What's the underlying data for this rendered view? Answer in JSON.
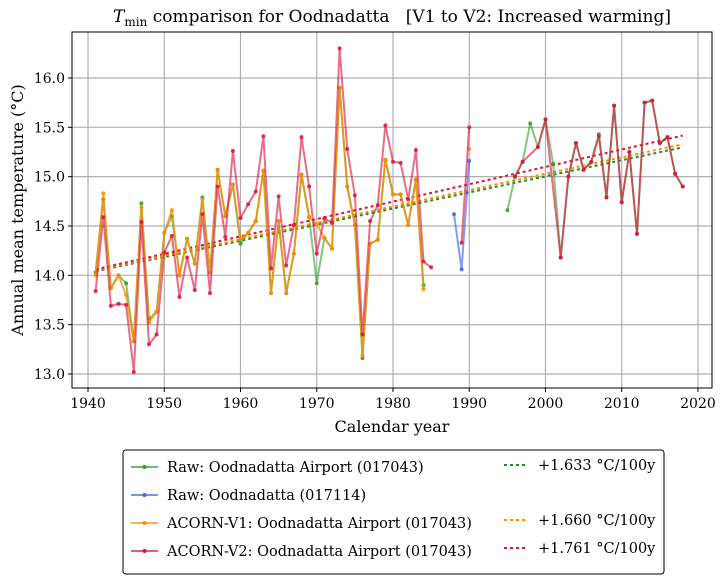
{
  "chart_data": {
    "type": "line",
    "title_main": "T",
    "title_sub": "min",
    "title_rest": " comparison for Oodnadatta   [V1 to V2: Increased warming]",
    "xlabel": "Calendar year",
    "ylabel": "Annual mean temperature (°C)",
    "xlim": [
      1937.9,
      2021.84
    ],
    "ylim": [
      12.858,
      16.466
    ],
    "xticks": [
      1940,
      1950,
      1960,
      1970,
      1980,
      1990,
      2000,
      2010,
      2020
    ],
    "yticks": [
      "13.0",
      "13.5",
      "14.0",
      "14.5",
      "15.0",
      "15.5",
      "16.0"
    ],
    "grid": true,
    "legend_position": "below-center",
    "series": [
      {
        "name": "Raw: Oodnadatta Airport (017043)",
        "color": "#2ca02c",
        "segments": [
          [
            [
              1941,
              14.03
            ],
            [
              1942,
              14.77
            ],
            [
              1943,
              13.87
            ],
            [
              1944,
              14.0
            ],
            [
              1945,
              13.92
            ],
            [
              1946,
              13.33
            ],
            [
              1947,
              14.73
            ],
            [
              1948,
              13.56
            ],
            [
              1949,
              13.63
            ],
            [
              1950,
              14.43
            ],
            [
              1951,
              14.6
            ],
            [
              1952,
              14.0
            ],
            [
              1953,
              14.37
            ],
            [
              1954,
              14.12
            ],
            [
              1955,
              14.79
            ],
            [
              1956,
              14.03
            ],
            [
              1957,
              15.07
            ],
            [
              1958,
              14.6
            ],
            [
              1959,
              14.92
            ],
            [
              1960,
              14.32
            ],
            [
              1961,
              14.43
            ],
            [
              1962,
              14.55
            ],
            [
              1963,
              15.06
            ],
            [
              1964,
              13.82
            ],
            [
              1965,
              14.55
            ],
            [
              1966,
              13.82
            ],
            [
              1967,
              14.22
            ],
            [
              1968,
              15.02
            ],
            [
              1969,
              14.59
            ],
            [
              1970,
              13.92
            ],
            [
              1971,
              14.38
            ],
            [
              1972,
              14.27
            ],
            [
              1973,
              15.9
            ],
            [
              1974,
              14.9
            ],
            [
              1975,
              14.51
            ],
            [
              1976,
              13.16
            ],
            [
              1977,
              14.32
            ],
            [
              1978,
              14.36
            ],
            [
              1979,
              15.17
            ],
            [
              1980,
              14.82
            ],
            [
              1981,
              14.82
            ],
            [
              1982,
              14.51
            ],
            [
              1983,
              14.97
            ],
            [
              1984,
              13.9
            ]
          ],
          [
            [
              1995,
              14.66
            ],
            [
              1996,
              15.0
            ],
            [
              1997,
              15.15
            ],
            [
              1998,
              15.54
            ],
            [
              1999,
              15.3
            ],
            [
              2000,
              15.58
            ],
            [
              2001,
              15.13
            ],
            [
              2002,
              14.18
            ],
            [
              2003,
              15.0
            ],
            [
              2004,
              15.34
            ],
            [
              2005,
              15.07
            ],
            [
              2006,
              15.15
            ],
            [
              2007,
              15.43
            ],
            [
              2008,
              14.79
            ],
            [
              2009,
              15.72
            ],
            [
              2010,
              14.74
            ],
            [
              2011,
              15.25
            ],
            [
              2012,
              14.42
            ],
            [
              2013,
              15.75
            ],
            [
              2014,
              15.77
            ],
            [
              2015,
              15.34
            ],
            [
              2016,
              15.4
            ],
            [
              2017,
              15.03
            ],
            [
              2018,
              14.9
            ]
          ]
        ]
      },
      {
        "name": "Raw: Oodnadatta (017114)",
        "color": "#4169e1",
        "segments": [
          [
            [
              1988,
              14.62
            ],
            [
              1989,
              14.06
            ],
            [
              1990,
              15.16
            ]
          ]
        ]
      },
      {
        "name": "ACORN-V1: Oodnadatta Airport (017043)",
        "color": "#ff8c00",
        "segments": [
          [
            [
              1941,
              14.0
            ],
            [
              1942,
              14.83
            ],
            [
              1943,
              13.87
            ],
            [
              1944,
              14.0
            ],
            [
              1945,
              13.8
            ],
            [
              1946,
              13.33
            ],
            [
              1947,
              14.69
            ],
            [
              1948,
              13.52
            ],
            [
              1949,
              13.63
            ],
            [
              1950,
              14.43
            ],
            [
              1951,
              14.66
            ],
            [
              1952,
              14.0
            ],
            [
              1953,
              14.37
            ],
            [
              1954,
              14.12
            ],
            [
              1955,
              14.77
            ],
            [
              1956,
              14.03
            ],
            [
              1957,
              15.07
            ],
            [
              1958,
              14.6
            ],
            [
              1959,
              14.92
            ],
            [
              1960,
              14.37
            ],
            [
              1961,
              14.43
            ],
            [
              1962,
              14.55
            ],
            [
              1963,
              15.06
            ],
            [
              1964,
              13.82
            ],
            [
              1965,
              14.55
            ],
            [
              1966,
              13.82
            ],
            [
              1967,
              14.22
            ],
            [
              1968,
              15.02
            ],
            [
              1969,
              14.59
            ],
            [
              1970,
              14.52
            ],
            [
              1971,
              14.38
            ],
            [
              1972,
              14.27
            ],
            [
              1973,
              15.9
            ],
            [
              1974,
              14.9
            ],
            [
              1975,
              14.51
            ],
            [
              1976,
              13.19
            ],
            [
              1977,
              14.32
            ],
            [
              1978,
              14.36
            ],
            [
              1979,
              15.17
            ],
            [
              1980,
              14.82
            ],
            [
              1981,
              14.82
            ],
            [
              1982,
              14.51
            ],
            [
              1983,
              14.97
            ],
            [
              1984,
              13.86
            ]
          ],
          [
            [
              1990,
              15.28
            ]
          ]
        ]
      },
      {
        "name": "ACORN-V2: Oodnadatta Airport (017043)",
        "color": "#dc143c",
        "segments": [
          [
            [
              1941,
              13.84
            ],
            [
              1942,
              14.59
            ],
            [
              1943,
              13.69
            ],
            [
              1944,
              13.71
            ],
            [
              1945,
              13.7
            ],
            [
              1946,
              13.02
            ],
            [
              1947,
              14.54
            ],
            [
              1948,
              13.3
            ],
            [
              1949,
              13.4
            ],
            [
              1950,
              14.23
            ],
            [
              1951,
              14.4
            ],
            [
              1952,
              13.78
            ],
            [
              1953,
              14.18
            ],
            [
              1954,
              13.85
            ],
            [
              1955,
              14.62
            ],
            [
              1956,
              13.82
            ],
            [
              1957,
              14.9
            ],
            [
              1958,
              14.39
            ],
            [
              1959,
              15.26
            ],
            [
              1960,
              14.58
            ],
            [
              1961,
              14.72
            ],
            [
              1962,
              14.85
            ],
            [
              1963,
              15.41
            ],
            [
              1964,
              14.07
            ],
            [
              1965,
              14.8
            ],
            [
              1966,
              14.1
            ],
            [
              1967,
              14.51
            ],
            [
              1968,
              15.4
            ],
            [
              1969,
              14.9
            ],
            [
              1970,
              14.22
            ],
            [
              1971,
              14.58
            ],
            [
              1972,
              14.53
            ],
            [
              1973,
              16.3
            ],
            [
              1974,
              15.28
            ],
            [
              1975,
              14.81
            ],
            [
              1976,
              13.4
            ],
            [
              1977,
              14.55
            ],
            [
              1978,
              14.71
            ],
            [
              1979,
              15.52
            ],
            [
              1980,
              15.15
            ],
            [
              1981,
              15.14
            ],
            [
              1982,
              14.77
            ],
            [
              1983,
              15.27
            ],
            [
              1984,
              14.14
            ],
            [
              1985,
              14.08
            ]
          ],
          [
            [
              1989,
              14.33
            ],
            [
              1990,
              15.5
            ]
          ],
          [
            [
              1996,
              15.0
            ],
            [
              1997,
              15.15
            ],
            [
              1999,
              15.3
            ],
            [
              2000,
              15.58
            ],
            [
              2002,
              14.18
            ],
            [
              2003,
              15.0
            ],
            [
              2004,
              15.34
            ],
            [
              2005,
              15.07
            ],
            [
              2006,
              15.15
            ],
            [
              2007,
              15.41
            ],
            [
              2008,
              14.79
            ],
            [
              2009,
              15.72
            ],
            [
              2010,
              14.74
            ],
            [
              2011,
              15.25
            ],
            [
              2012,
              14.42
            ],
            [
              2013,
              15.75
            ],
            [
              2014,
              15.77
            ],
            [
              2015,
              15.34
            ],
            [
              2016,
              15.4
            ],
            [
              2017,
              15.03
            ],
            [
              2018,
              14.9
            ]
          ]
        ]
      }
    ],
    "trends": [
      {
        "label": "+1.633 °C/100y",
        "slope_per_100y": 1.633,
        "color": "#228b22",
        "x": [
          1941,
          2018
        ],
        "y": [
          14.04,
          15.297
        ]
      },
      {
        "label": "+1.660 °C/100y",
        "slope_per_100y": 1.66,
        "color": "#ff8c00",
        "x": [
          1941,
          2018
        ],
        "y": [
          14.05,
          15.328
        ]
      },
      {
        "label": "+1.761 °C/100y",
        "slope_per_100y": 1.761,
        "color": "#dc143c",
        "x": [
          1941,
          2018
        ],
        "y": [
          14.06,
          15.416
        ]
      }
    ]
  }
}
